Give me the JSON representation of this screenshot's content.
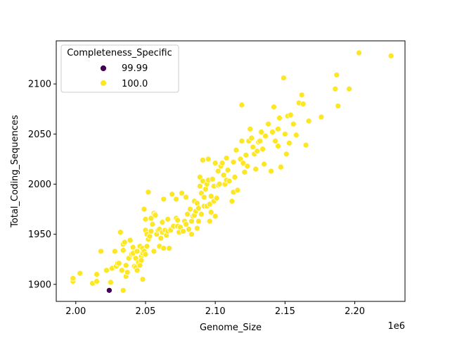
{
  "chart_data": {
    "type": "scatter",
    "xlabel": "Genome_Size",
    "ylabel": "Total_Coding_Sequences",
    "x_offset_label": "1e6",
    "x_unit_multiplier": 1000000,
    "xlim": [
      1.986,
      2.236
    ],
    "ylim": [
      1883,
      2143
    ],
    "x_ticks": [
      2.0,
      2.05,
      2.1,
      2.15,
      2.2
    ],
    "x_tick_labels": [
      "2.00",
      "2.05",
      "2.10",
      "2.15",
      "2.20"
    ],
    "y_ticks": [
      1900,
      1950,
      2000,
      2050,
      2100
    ],
    "y_tick_labels": [
      "1900",
      "1950",
      "2000",
      "2050",
      "2100"
    ],
    "grid": false,
    "legend": {
      "title": "Completeness_Specific",
      "placement": "top-left",
      "entries": [
        {
          "label": "99.99",
          "color": "#440154"
        },
        {
          "label": "100.0",
          "color": "#fde725"
        }
      ]
    },
    "series": [
      {
        "name": "99.99",
        "color": "#440154",
        "points": [
          [
            2.024,
            1894
          ]
        ]
      },
      {
        "name": "100.0",
        "color": "#fde725",
        "points": [
          [
            1.998,
            1903
          ],
          [
            1.998,
            1906
          ],
          [
            2.003,
            1911
          ],
          [
            2.012,
            1901
          ],
          [
            2.015,
            1903
          ],
          [
            2.015,
            1910
          ],
          [
            2.018,
            1933
          ],
          [
            2.022,
            1914
          ],
          [
            2.025,
            1902
          ],
          [
            2.026,
            1916
          ],
          [
            2.028,
            1933
          ],
          [
            2.029,
            1918
          ],
          [
            2.03,
            1921
          ],
          [
            2.031,
            1921
          ],
          [
            2.032,
            1952
          ],
          [
            2.033,
            1914
          ],
          [
            2.034,
            1894
          ],
          [
            2.034,
            1934
          ],
          [
            2.034,
            1940
          ],
          [
            2.035,
            1942
          ],
          [
            2.036,
            1908
          ],
          [
            2.036,
            1919
          ],
          [
            2.037,
            1912
          ],
          [
            2.038,
            1926
          ],
          [
            2.039,
            1944
          ],
          [
            2.04,
            1930
          ],
          [
            2.041,
            1937
          ],
          [
            2.041,
            1931
          ],
          [
            2.042,
            1918
          ],
          [
            2.043,
            1926
          ],
          [
            2.043,
            1917
          ],
          [
            2.044,
            1933
          ],
          [
            2.044,
            1914
          ],
          [
            2.045,
            1922
          ],
          [
            2.046,
            1919
          ],
          [
            2.046,
            1938
          ],
          [
            2.047,
            1928
          ],
          [
            2.047,
            1924
          ],
          [
            2.048,
            1931
          ],
          [
            2.048,
            1936
          ],
          [
            2.048,
            1905
          ],
          [
            2.049,
            1933
          ],
          [
            2.049,
            1975
          ],
          [
            2.05,
            1930
          ],
          [
            2.05,
            1965
          ],
          [
            2.05,
            1954
          ],
          [
            2.051,
            1950
          ],
          [
            2.051,
            1938
          ],
          [
            2.052,
            1945
          ],
          [
            2.052,
            1992
          ],
          [
            2.053,
            1948
          ],
          [
            2.054,
            1953
          ],
          [
            2.054,
            1966
          ],
          [
            2.055,
            1960
          ],
          [
            2.056,
            1933
          ],
          [
            2.056,
            1971
          ],
          [
            2.057,
            1970
          ],
          [
            2.057,
            1969
          ],
          [
            2.058,
            1950
          ],
          [
            2.059,
            1954
          ],
          [
            2.06,
            1938
          ],
          [
            2.06,
            1955
          ],
          [
            2.061,
            1946
          ],
          [
            2.062,
            1952
          ],
          [
            2.062,
            1962
          ],
          [
            2.063,
            1985
          ],
          [
            2.063,
            1936
          ],
          [
            2.064,
            1954
          ],
          [
            2.065,
            1949
          ],
          [
            2.066,
            1965
          ],
          [
            2.066,
            1953
          ],
          [
            2.067,
            1936
          ],
          [
            2.068,
            1955
          ],
          [
            2.068,
            1954
          ],
          [
            2.069,
            1990
          ],
          [
            2.07,
            1958
          ],
          [
            2.072,
            1966
          ],
          [
            2.072,
            1985
          ],
          [
            2.073,
            1964
          ],
          [
            2.073,
            1958
          ],
          [
            2.074,
            1952
          ],
          [
            2.075,
            1957
          ],
          [
            2.076,
            1991
          ],
          [
            2.077,
            1953
          ],
          [
            2.078,
            1963
          ],
          [
            2.079,
            1960
          ],
          [
            2.079,
            1987
          ],
          [
            2.08,
            1970
          ],
          [
            2.081,
            1955
          ],
          [
            2.082,
            1975
          ],
          [
            2.083,
            1963
          ],
          [
            2.083,
            1950
          ],
          [
            2.084,
            1968
          ],
          [
            2.085,
            1969
          ],
          [
            2.085,
            1983
          ],
          [
            2.086,
            1973
          ],
          [
            2.087,
            1956
          ],
          [
            2.087,
            1981
          ],
          [
            2.088,
            1963
          ],
          [
            2.088,
            1976
          ],
          [
            2.089,
            1998
          ],
          [
            2.089,
            2007
          ],
          [
            2.09,
            1970
          ],
          [
            2.09,
            1991
          ],
          [
            2.091,
            2003
          ],
          [
            2.091,
            2024
          ],
          [
            2.092,
            1987
          ],
          [
            2.092,
            1978
          ],
          [
            2.093,
            1995
          ],
          [
            2.094,
            1978
          ],
          [
            2.094,
            2000
          ],
          [
            2.095,
            2004
          ],
          [
            2.095,
            2025
          ],
          [
            2.096,
            1963
          ],
          [
            2.096,
            1980
          ],
          [
            2.097,
            1972
          ],
          [
            2.097,
            1988
          ],
          [
            2.098,
            2005
          ],
          [
            2.099,
            1983
          ],
          [
            2.099,
            1998
          ],
          [
            2.1,
            2021
          ],
          [
            2.1,
            1968
          ],
          [
            2.101,
            1986
          ],
          [
            2.102,
            1999
          ],
          [
            2.102,
            2013
          ],
          [
            2.103,
            2000
          ],
          [
            2.104,
            2018
          ],
          [
            2.105,
            2021
          ],
          [
            2.106,
            2009
          ],
          [
            2.107,
            2000
          ],
          [
            2.108,
            2026
          ],
          [
            2.108,
            2004
          ],
          [
            2.109,
            2014
          ],
          [
            2.11,
            2003
          ],
          [
            2.112,
            1983
          ],
          [
            2.113,
            1992
          ],
          [
            2.113,
            2022
          ],
          [
            2.114,
            2007
          ],
          [
            2.115,
            2034
          ],
          [
            2.116,
            1994
          ],
          [
            2.118,
            2025
          ],
          [
            2.119,
            2043
          ],
          [
            2.119,
            2079
          ],
          [
            2.12,
            2021
          ],
          [
            2.121,
            2012
          ],
          [
            2.122,
            2029
          ],
          [
            2.123,
            2018
          ],
          [
            2.124,
            2043
          ],
          [
            2.125,
            2055
          ],
          [
            2.126,
            2046
          ],
          [
            2.127,
            2037
          ],
          [
            2.128,
            2030
          ],
          [
            2.129,
            2015
          ],
          [
            2.13,
            2033
          ],
          [
            2.131,
            2042
          ],
          [
            2.132,
            2043
          ],
          [
            2.133,
            2052
          ],
          [
            2.134,
            2035
          ],
          [
            2.135,
            2020
          ],
          [
            2.136,
            2048
          ],
          [
            2.138,
            2060
          ],
          [
            2.14,
            2013
          ],
          [
            2.141,
            2052
          ],
          [
            2.142,
            2077
          ],
          [
            2.143,
            2043
          ],
          [
            2.145,
            2038
          ],
          [
            2.145,
            2055
          ],
          [
            2.146,
            2066
          ],
          [
            2.147,
            2017
          ],
          [
            2.149,
            2106
          ],
          [
            2.15,
            2050
          ],
          [
            2.151,
            2030
          ],
          [
            2.152,
            2068
          ],
          [
            2.153,
            2041
          ],
          [
            2.154,
            2069
          ],
          [
            2.156,
            2060
          ],
          [
            2.158,
            2049
          ],
          [
            2.16,
            2081
          ],
          [
            2.162,
            2089
          ],
          [
            2.163,
            2080
          ],
          [
            2.165,
            2039
          ],
          [
            2.167,
            2063
          ],
          [
            2.176,
            2067
          ],
          [
            2.186,
            2095
          ],
          [
            2.187,
            2109
          ],
          [
            2.188,
            2078
          ],
          [
            2.196,
            2095
          ],
          [
            2.203,
            2131
          ],
          [
            2.226,
            2128
          ]
        ]
      }
    ]
  }
}
